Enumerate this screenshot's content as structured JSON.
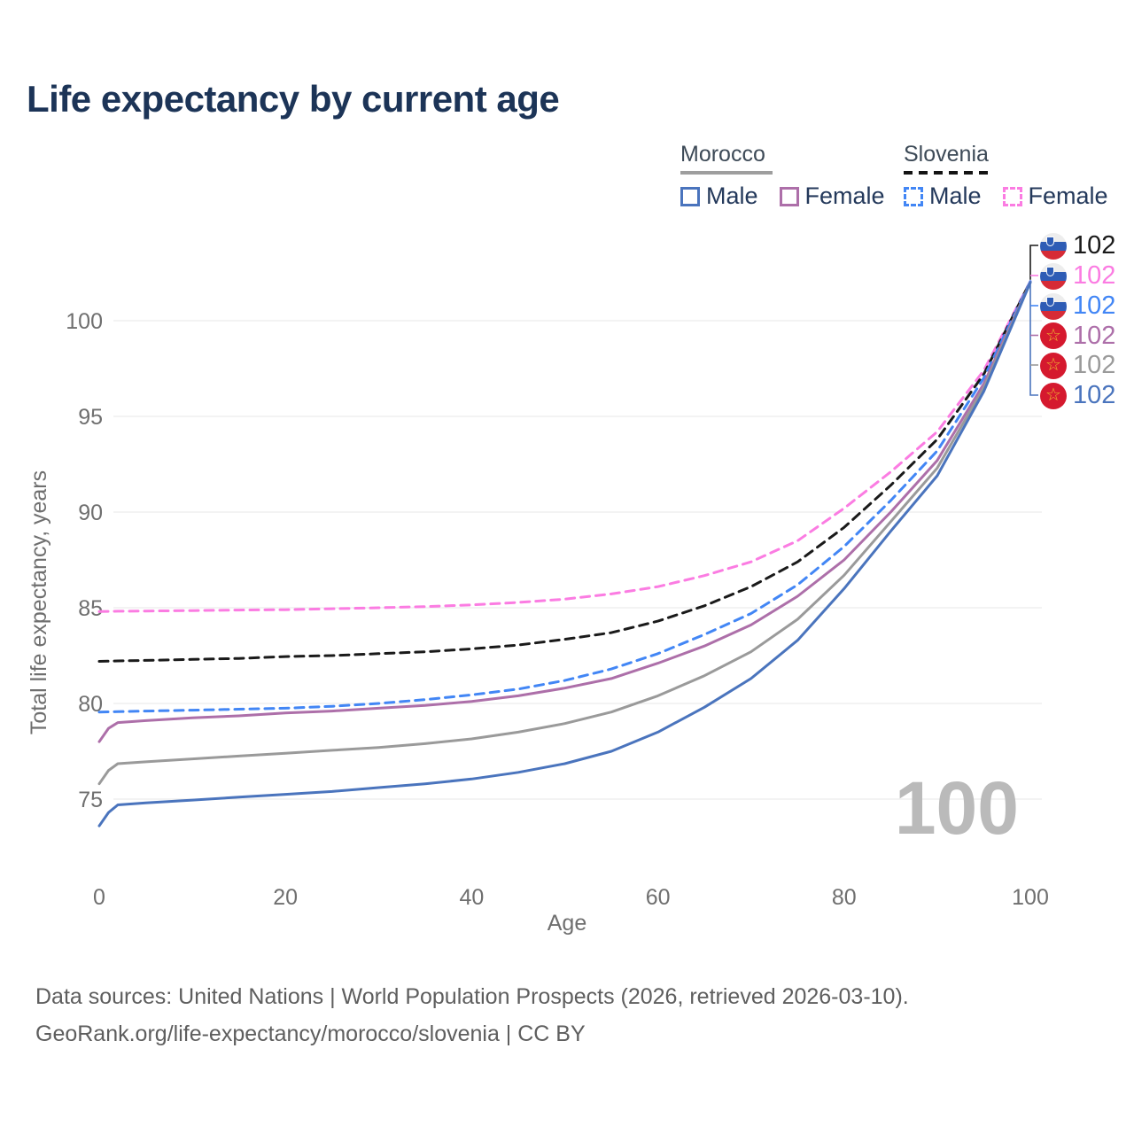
{
  "header": {
    "title": "Life expectancy by current age"
  },
  "legend": {
    "groups": [
      {
        "label": "Morocco",
        "line_style": "solid",
        "underline_color": "#9e9e9e",
        "items": [
          {
            "label": "Male",
            "color": "#4a74bd",
            "dashed": false
          },
          {
            "label": "Female",
            "color": "#ad6fa9",
            "dashed": false
          }
        ]
      },
      {
        "label": "Slovenia",
        "line_style": "dashed",
        "underline_color": "#141414",
        "items": [
          {
            "label": "Male",
            "color": "#4286f5",
            "dashed": true
          },
          {
            "label": "Female",
            "color": "#fb7ce2",
            "dashed": true
          }
        ]
      }
    ]
  },
  "chart_data": {
    "type": "line",
    "title": "Life expectancy by current age",
    "xlabel": "Age",
    "ylabel": "Total life expectancy, years",
    "x_ticks": [
      0,
      20,
      40,
      60,
      80,
      100
    ],
    "y_ticks": [
      75,
      80,
      85,
      90,
      95,
      100
    ],
    "xlim": [
      0,
      100
    ],
    "ylim": [
      73.5,
      103
    ],
    "grid": "horizontal",
    "legend_position": "top-right",
    "watermark": "100",
    "ages": [
      0,
      1,
      2,
      5,
      10,
      15,
      20,
      25,
      30,
      35,
      40,
      45,
      50,
      55,
      60,
      65,
      70,
      75,
      80,
      85,
      90,
      95,
      100
    ],
    "series": [
      {
        "name": "Slovenia Female",
        "country": "Slovenia",
        "sex": "Female",
        "color": "#fb7ce2",
        "dashed": true,
        "end_label": "102",
        "values": [
          84.8,
          84.81,
          84.82,
          84.83,
          84.85,
          84.88,
          84.9,
          84.95,
          85.0,
          85.06,
          85.15,
          85.28,
          85.45,
          85.72,
          86.1,
          86.68,
          87.4,
          88.5,
          90.2,
          92.1,
          94.2,
          97.4,
          102.05
        ]
      },
      {
        "name": "Slovenia Both sexes",
        "country": "Slovenia",
        "sex": "Both sexes",
        "color": "#1a1a1a",
        "dashed": true,
        "end_label": "102",
        "values": [
          82.2,
          82.21,
          82.22,
          82.25,
          82.3,
          82.35,
          82.45,
          82.5,
          82.6,
          82.7,
          82.85,
          83.05,
          83.35,
          83.7,
          84.3,
          85.1,
          86.1,
          87.4,
          89.2,
          91.4,
          93.8,
          97.2,
          102.05
        ]
      },
      {
        "name": "Slovenia Male",
        "country": "Slovenia",
        "sex": "Male",
        "color": "#4286f5",
        "dashed": true,
        "end_label": "102",
        "values": [
          79.55,
          79.56,
          79.57,
          79.6,
          79.65,
          79.7,
          79.75,
          79.85,
          80.0,
          80.2,
          80.45,
          80.75,
          81.2,
          81.8,
          82.6,
          83.6,
          84.7,
          86.2,
          88.2,
          90.6,
          93.2,
          97.0,
          102.05
        ]
      },
      {
        "name": "Morocco Female",
        "country": "Morocco",
        "sex": "Female",
        "color": "#ad6fa9",
        "dashed": false,
        "end_label": "102",
        "values": [
          78.0,
          78.7,
          79.0,
          79.1,
          79.25,
          79.35,
          79.5,
          79.6,
          79.75,
          79.9,
          80.1,
          80.4,
          80.8,
          81.3,
          82.1,
          83.0,
          84.1,
          85.6,
          87.5,
          90.0,
          92.7,
          96.7,
          102.0
        ]
      },
      {
        "name": "Morocco Both sexes",
        "country": "Morocco",
        "sex": "Both sexes",
        "color": "#9a9a9a",
        "dashed": false,
        "end_label": "102",
        "values": [
          75.8,
          76.5,
          76.85,
          76.95,
          77.1,
          77.25,
          77.4,
          77.55,
          77.7,
          77.9,
          78.15,
          78.5,
          78.95,
          79.55,
          80.4,
          81.45,
          82.7,
          84.4,
          86.7,
          89.5,
          92.3,
          96.5,
          102.0
        ]
      },
      {
        "name": "Morocco Male",
        "country": "Morocco",
        "sex": "Male",
        "color": "#4a74bd",
        "dashed": false,
        "end_label": "102",
        "values": [
          73.6,
          74.3,
          74.7,
          74.8,
          74.95,
          75.1,
          75.25,
          75.4,
          75.6,
          75.8,
          76.05,
          76.4,
          76.85,
          77.5,
          78.5,
          79.8,
          81.3,
          83.3,
          86.0,
          89.0,
          91.9,
          96.3,
          102.0
        ]
      }
    ],
    "end_label_order": [
      "Slovenia Both sexes",
      "Slovenia Female",
      "Slovenia Male",
      "Morocco Female",
      "Morocco Both sexes",
      "Morocco Male"
    ]
  },
  "icons": {
    "morocco_star_glyph": "☆"
  },
  "footer": {
    "line1": "Data sources: United Nations | World Population Prospects (2026, retrieved 2026-03-10).",
    "line2": "GeoRank.org/life-expectancy/morocco/slovenia | CC BY"
  }
}
